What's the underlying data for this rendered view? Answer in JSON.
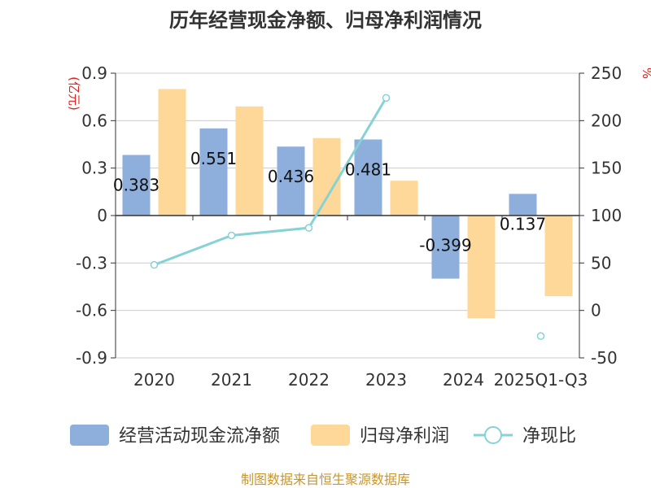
{
  "chart_data": {
    "type": "bar+line",
    "title": "历年经营现金净额、归母净利润情况",
    "categories": [
      "2020",
      "2021",
      "2022",
      "2023",
      "2024",
      "2025Q1-Q3"
    ],
    "left_axis": {
      "unit": "(亿元)",
      "ticks": [
        "0.9",
        "0.6",
        "0.3",
        "0",
        "-0.3",
        "-0.6",
        "-0.9"
      ],
      "ylim": [
        -0.9,
        0.9
      ]
    },
    "right_axis": {
      "unit": "%",
      "ticks": [
        "250",
        "200",
        "150",
        "100",
        "50",
        "0",
        "-50"
      ],
      "ylim": [
        -50,
        250
      ]
    },
    "series": [
      {
        "name": "经营活动现金流净额",
        "type": "bar",
        "axis": "left",
        "color": "#8eaedb",
        "values": [
          0.383,
          0.551,
          0.436,
          0.481,
          -0.399,
          0.137
        ],
        "labels": [
          "0.383",
          "0.551",
          "0.436",
          "0.481",
          "-0.399",
          "0.137"
        ]
      },
      {
        "name": "归母净利润",
        "type": "bar",
        "axis": "left",
        "color": "#fdd899",
        "values": [
          0.8,
          0.69,
          0.49,
          0.22,
          -0.65,
          -0.51
        ]
      },
      {
        "name": "净现比",
        "type": "line",
        "axis": "right",
        "color": "#86d2d4",
        "values": [
          48,
          79,
          87,
          224,
          null,
          -27
        ]
      }
    ],
    "legend_position": "bottom"
  },
  "footer": {
    "source": "制图数据来自恒生聚源数据库"
  }
}
